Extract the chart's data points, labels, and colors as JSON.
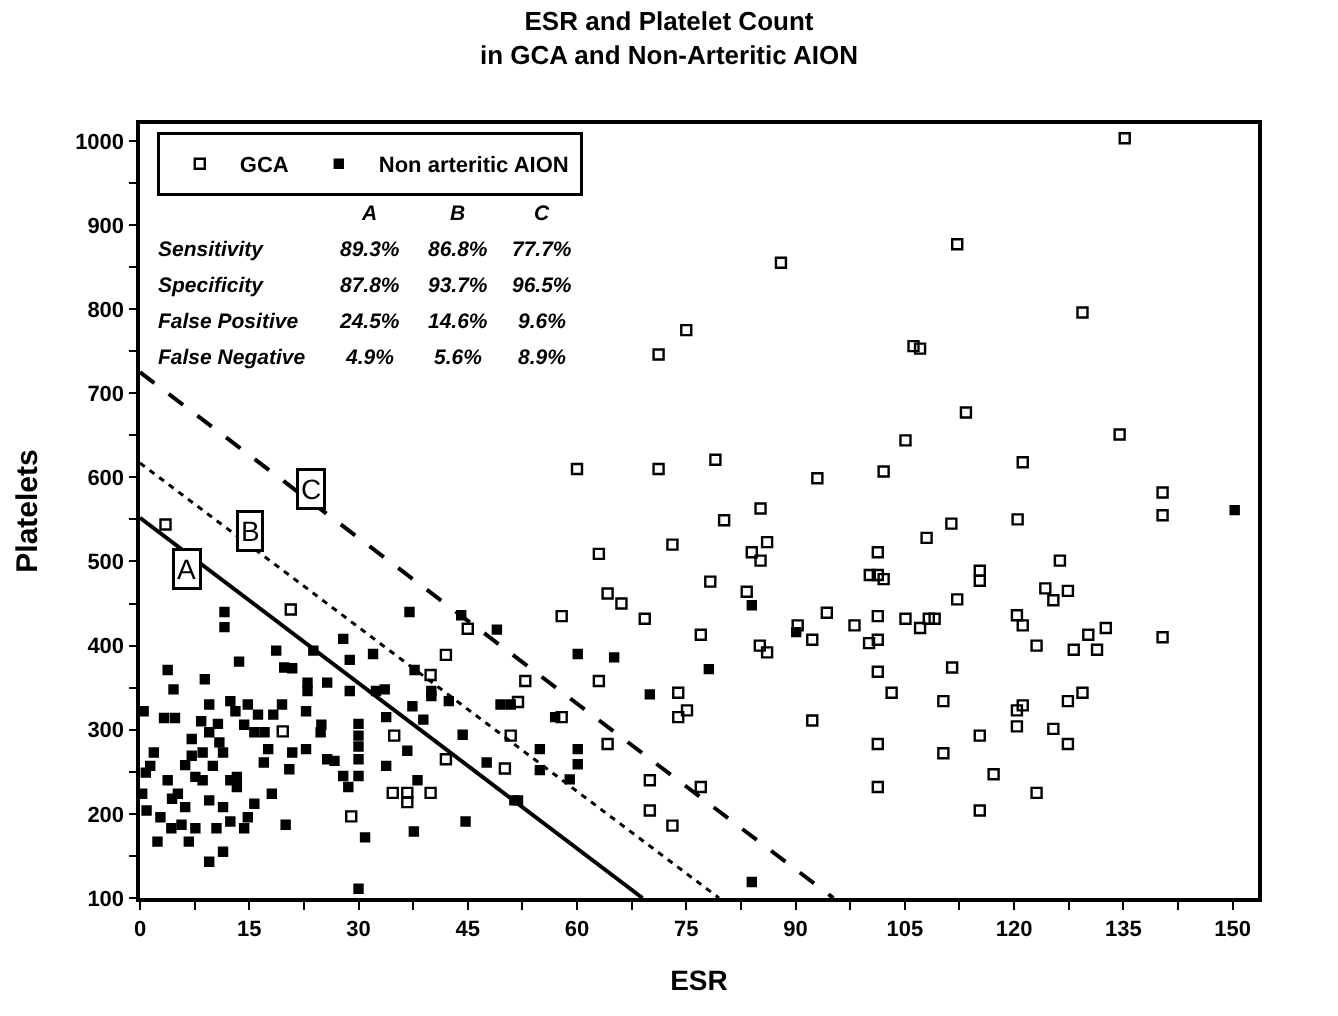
{
  "chart_data": {
    "type": "scatter",
    "title": "ESR and Platelet Count\nin GCA and Non-Arteritic AION",
    "xlabel": "ESR",
    "ylabel": "Platelets",
    "xlim": [
      0,
      153.5
    ],
    "ylim": [
      100,
      1020
    ],
    "xticks": [
      0,
      {
        "value": 7.5,
        "label": null
      },
      15,
      {
        "value": 22.5,
        "label": null
      },
      30,
      {
        "value": 37.5,
        "label": null
      },
      45,
      {
        "value": 52.5,
        "label": null
      },
      60,
      {
        "value": 67.5,
        "label": null
      },
      75,
      {
        "value": 82.5,
        "label": null
      },
      90,
      {
        "value": 97.5,
        "label": null
      },
      105,
      {
        "value": 112.5,
        "label": null
      },
      120,
      {
        "value": 127.5,
        "label": null
      },
      135,
      {
        "value": 142.5,
        "label": null
      },
      150
    ],
    "yticks": [
      100,
      {
        "value": 150,
        "label": null
      },
      200,
      {
        "value": 250,
        "label": null
      },
      300,
      {
        "value": 350,
        "label": null
      },
      400,
      {
        "value": 450,
        "label": null
      },
      500,
      {
        "value": 550,
        "label": null
      },
      600,
      {
        "value": 650,
        "label": null
      },
      700,
      {
        "value": 750,
        "label": null
      },
      800,
      {
        "value": 850,
        "label": null
      },
      900,
      {
        "value": 950,
        "label": null
      },
      1000
    ],
    "legend": "top left",
    "series": [
      {
        "name": "GCA",
        "color": "#000000",
        "marker": "square-open",
        "x": [
          135.2,
          112.2,
          88.0,
          75.0,
          71.2,
          129.4,
          106.2,
          107.1,
          113.4,
          105.1,
          134.5,
          60.0,
          71.2,
          79.0,
          93.0,
          102.1,
          121.2,
          140.4,
          140.4,
          80.2,
          85.2,
          111.4,
          120.5,
          73.1,
          86.1,
          84.0,
          85.2,
          63.0,
          108.0,
          101.3,
          100.2,
          101.3,
          102.1,
          78.3,
          64.2,
          66.1,
          83.3,
          57.9,
          69.3,
          94.3,
          98.1,
          101.3,
          105.1,
          107.1,
          90.3,
          92.3,
          77.0,
          85.1,
          86.1,
          100.1,
          101.3,
          101.3,
          103.2,
          92.3,
          101.3,
          101.3,
          63.0,
          52.9,
          51.9,
          73.9,
          75.1,
          73.9,
          57.9,
          64.2,
          50.9,
          70.0,
          77.0,
          70.0,
          73.1,
          126.3,
          115.3,
          115.3,
          112.2,
          124.3,
          127.4,
          125.4,
          108.3,
          109.1,
          120.4,
          121.2,
          123.1,
          128.2,
          130.2,
          131.4,
          132.6,
          140.4,
          111.5,
          110.3,
          120.4,
          121.2,
          120.4,
          127.4,
          129.4,
          125.4,
          127.4,
          115.3,
          110.3,
          117.2,
          123.1,
          115.3,
          3.5,
          20.7,
          42.0,
          39.9,
          45.0,
          34.9,
          50.1,
          42.0,
          34.7,
          36.7,
          39.9,
          36.7,
          29.0,
          19.6
        ],
        "values": [
          1003,
          877,
          855,
          775,
          746,
          796,
          756,
          753,
          677,
          644,
          651,
          610,
          610,
          621,
          599,
          607,
          618,
          582,
          555,
          549,
          563,
          545,
          550,
          520,
          523,
          511,
          501,
          509,
          528,
          511,
          484,
          484,
          479,
          476,
          462,
          450,
          464,
          435,
          432,
          439,
          424,
          435,
          432,
          421,
          424,
          407,
          413,
          400,
          392,
          403,
          407,
          369,
          344,
          311,
          283,
          232,
          358,
          358,
          333,
          344,
          323,
          315,
          315,
          283,
          293,
          240,
          232,
          204,
          186,
          501,
          489,
          477,
          455,
          468,
          465,
          454,
          432,
          432,
          436,
          424,
          400,
          395,
          413,
          395,
          421,
          410,
          374,
          334,
          323,
          329,
          304,
          334,
          344,
          301,
          283,
          293,
          272,
          247,
          225,
          204,
          544,
          443,
          389,
          365,
          420,
          293,
          254,
          265,
          225,
          225,
          225,
          214,
          197,
          298
        ]
      },
      {
        "name": "Non arteritic AION",
        "color": "#000000",
        "marker": "square",
        "x": [
          11.6,
          11.6,
          3.8,
          8.9,
          4.6,
          13.6,
          18.7,
          19.8,
          20.9,
          23.8,
          23.0,
          25.7,
          23.0,
          28.8,
          27.9,
          32.0,
          37.0,
          44.1,
          49.0,
          37.7,
          40.0,
          28.8,
          32.4,
          33.6,
          37.4,
          38.9,
          33.8,
          30.0,
          30.0,
          30.0,
          30.0,
          30.0,
          27.9,
          24.8,
          25.7,
          26.7,
          22.8,
          20.9,
          20.5,
          17.6,
          17.0,
          15.7,
          16.2,
          14.8,
          12.4,
          13.1,
          14.3,
          10.7,
          9.5,
          8.4,
          7.1,
          7.1,
          7.6,
          8.6,
          10.0,
          11.4,
          12.4,
          13.3,
          9.5,
          11.4,
          12.4,
          10.5,
          7.6,
          5.7,
          4.3,
          2.4,
          2.8,
          0.9,
          0.3,
          0.8,
          1.9,
          3.3,
          4.8,
          0.5,
          1.4,
          3.8,
          5.2,
          6.2,
          6.7,
          9.5,
          11.4,
          14.3,
          15.7,
          18.1,
          20.0,
          30.9,
          28.6,
          33.8,
          36.7,
          38.1,
          37.6,
          44.7,
          47.6,
          51.4,
          49.5,
          50.9,
          44.3,
          42.4,
          40.0,
          19.5,
          18.3,
          17.1,
          22.8,
          24.9,
          9.5,
          10.9,
          6.2,
          4.4,
          8.6,
          13.3,
          14.8,
          30.0,
          57.0,
          60.1,
          65.1,
          78.1,
          70.0,
          54.9,
          60.1,
          54.9,
          60.1,
          59.0,
          51.9,
          84.0,
          84.0,
          90.1,
          150.3
        ],
        "values": [
          440,
          422,
          371,
          360,
          348,
          381,
          394,
          374,
          373,
          394,
          356,
          356,
          346,
          383,
          408,
          390,
          440,
          436,
          419,
          371,
          340,
          346,
          346,
          348,
          328,
          312,
          315,
          307,
          293,
          280,
          265,
          245,
          245,
          297,
          265,
          263,
          277,
          273,
          253,
          277,
          261,
          297,
          318,
          330,
          334,
          322,
          306,
          307,
          297,
          310,
          289,
          269,
          244,
          240,
          257,
          273,
          240,
          232,
          216,
          208,
          191,
          183,
          183,
          187,
          183,
          167,
          196,
          204,
          224,
          249,
          273,
          314,
          314,
          322,
          257,
          240,
          224,
          208,
          167,
          143,
          155,
          183,
          212,
          224,
          187,
          172,
          232,
          257,
          275,
          240,
          179,
          191,
          261,
          216,
          330,
          330,
          294,
          334,
          346,
          330,
          318,
          297,
          322,
          306,
          330,
          285,
          258,
          218,
          273,
          244,
          196,
          111,
          315,
          390,
          386,
          372,
          342,
          277,
          277,
          252,
          259,
          241,
          216,
          119,
          448,
          416,
          561
        ]
      },
      {
        "type": "line",
        "color": "#000000",
        "line_style": "solid",
        "x": [
          0,
          69.0
        ],
        "values": [
          552,
          100
        ]
      },
      {
        "type": "line",
        "color": "#000000",
        "line_style": "dotted",
        "x": [
          0,
          79.5
        ],
        "values": [
          617,
          100
        ]
      },
      {
        "type": "line",
        "color": "#000000",
        "line_style": "dashed",
        "x": [
          0,
          95.2
        ],
        "values": [
          725,
          100
        ]
      }
    ],
    "annotations": [
      {
        "text": "A",
        "x": 6.4,
        "y": 492
      },
      {
        "text": "B",
        "x": 15.2,
        "y": 536
      },
      {
        "text": "C",
        "x": 23.6,
        "y": 585
      },
      "A",
      "B",
      "C",
      "Sensitivity",
      "89.3%",
      "86.8%",
      "77.7%",
      "Specificity",
      "87.8%",
      "93.7%",
      "96.5%",
      "False Positive",
      "24.5%",
      "14.6%",
      "9.6%",
      "False Negative",
      "4.9%",
      "5.6%",
      "8.9%"
    ]
  }
}
